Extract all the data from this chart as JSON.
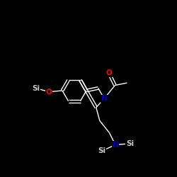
{
  "background_color": "#000000",
  "bond_color": "#ffffff",
  "atom_colors": {
    "O": "#ff0000",
    "N": "#0000cd",
    "Si": "#c8c8c8",
    "C": "#ffffff"
  },
  "font_size_atom": 7.5,
  "fig_size": [
    2.5,
    2.5
  ],
  "dpi": 100,
  "lw": 1.0
}
